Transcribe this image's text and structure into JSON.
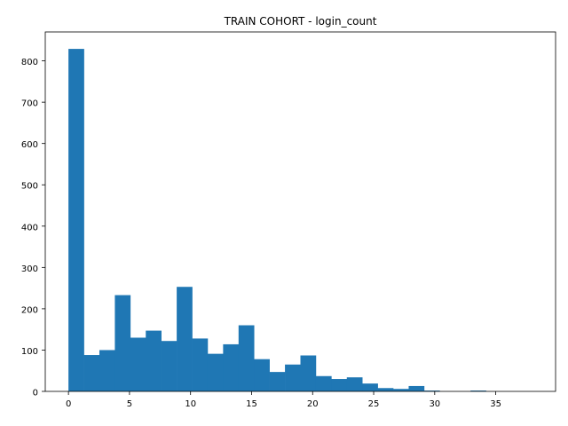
{
  "chart_data": {
    "type": "bar",
    "subtype": "histogram",
    "title": "TRAIN COHORT - login_count",
    "xlabel": "",
    "ylabel": "",
    "bin_edges": [
      0,
      1.2667,
      2.5333,
      3.8,
      5.0667,
      6.3333,
      7.6,
      8.8667,
      10.1333,
      11.4,
      12.6667,
      13.9333,
      15.2,
      16.4667,
      17.7333,
      19.0,
      20.2667,
      21.5333,
      22.8,
      24.0667,
      25.3333,
      26.6,
      27.8667,
      29.1333,
      30.4,
      31.6667,
      32.9333,
      34.2,
      35.4667,
      36.7333,
      38.0
    ],
    "values": [
      829,
      88,
      100,
      233,
      130,
      147,
      122,
      253,
      128,
      91,
      114,
      160,
      78,
      47,
      65,
      87,
      37,
      30,
      34,
      19,
      8,
      6,
      13,
      2,
      0,
      0,
      2,
      0,
      0,
      0
    ],
    "xlim": [
      -1.9,
      39.9
    ],
    "ylim": [
      0,
      870
    ],
    "xticks": [
      0,
      5,
      10,
      15,
      20,
      25,
      30,
      35
    ],
    "yticks": [
      0,
      100,
      200,
      300,
      400,
      500,
      600,
      700,
      800
    ],
    "bar_color": "#1f77b4",
    "grid": false,
    "legend": "none"
  }
}
